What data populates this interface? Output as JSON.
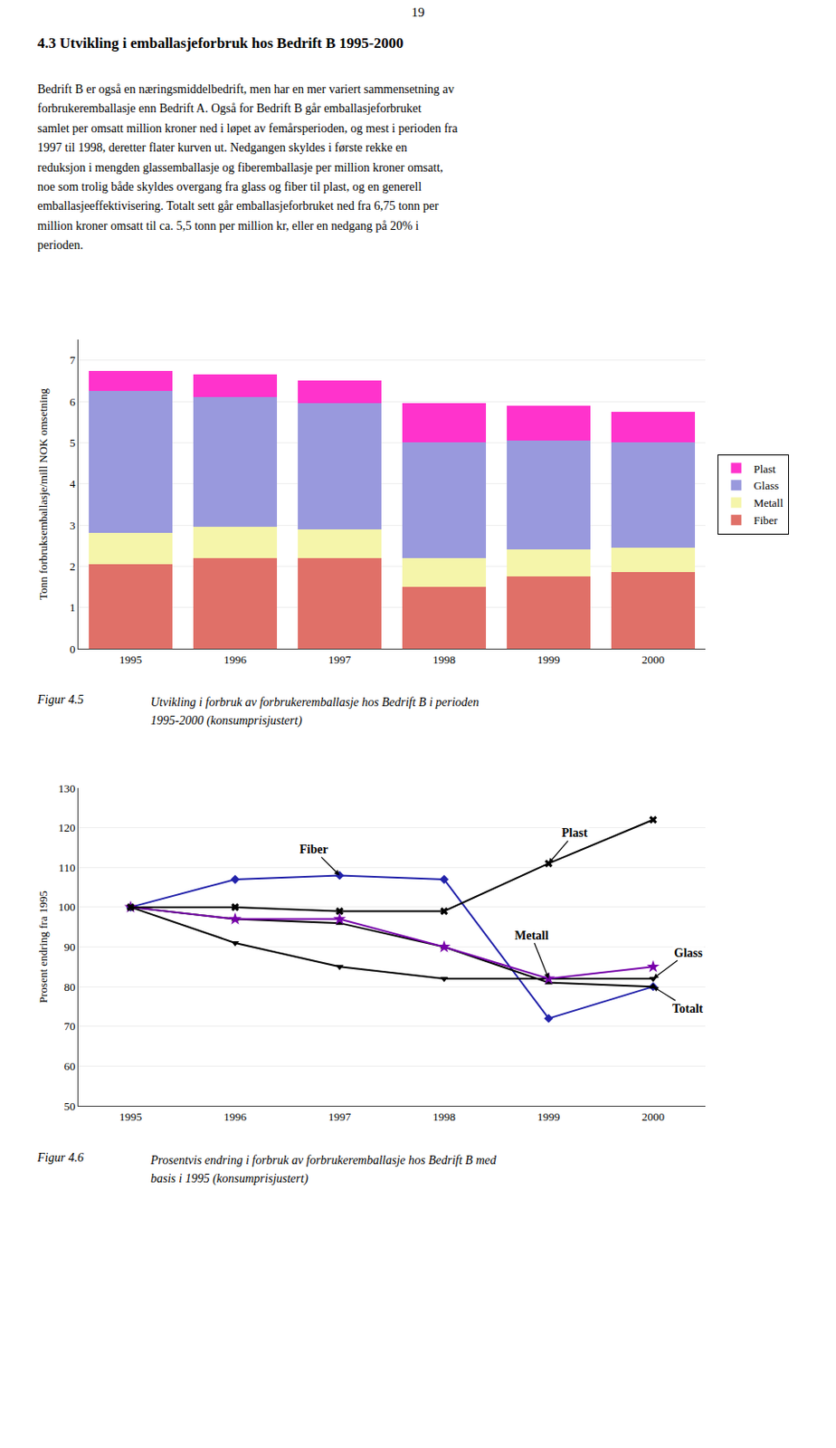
{
  "page_number": "19",
  "title": "4.3   Utvikling i emballasjeforbruk hos Bedrift B 1995-2000",
  "body_text": "Bedrift B er også en næringsmiddelbedrift, men har en mer variert sammensetning av\nforbrukeremballasje enn Bedrift A.  Også for Bedrift B går emballasjeforbruket\nsamlet per omsatt million kroner ned i løpet av femårsperioden, og mest i perioden fra\n1997 til 1998, deretter flater kurven ut.  Nedgangen skyldes i første rekke en\nreduksjon i mengden glassemballasje og fiberemballasje per million kroner omsatt,\nnoe som trolig både skyldes overgang fra glass og fiber til plast, og en generell\nemballasjeeffektivisering. Totalt sett går emballasjeforbruket ned fra 6,75 tonn per\nmillion kroner omsatt til ca. 5,5 tonn per million kr, eller en nedgang på 20% i\nperioden.",
  "chart_data": [
    {
      "type": "bar",
      "title": "Figur 4.5",
      "subtitle": "Utvikling i forbruk av forbrukeremballasje hos Bedrift B i perioden\n1995-2000 (konsumprisjustert)",
      "stacked": true,
      "categories": [
        "1995",
        "1996",
        "1997",
        "1998",
        "1999",
        "2000"
      ],
      "series": [
        {
          "name": "Fiber",
          "color": "#E07068",
          "values": [
            2.05,
            2.2,
            2.2,
            1.5,
            1.75,
            1.85
          ]
        },
        {
          "name": "Metall",
          "color": "#F5F5AA",
          "values": [
            0.75,
            0.75,
            0.7,
            0.7,
            0.65,
            0.6
          ]
        },
        {
          "name": "Glass",
          "color": "#9999DD",
          "values": [
            3.45,
            3.15,
            3.05,
            2.8,
            2.65,
            2.55
          ]
        },
        {
          "name": "Plast",
          "color": "#FF33CC",
          "values": [
            0.5,
            0.55,
            0.55,
            0.95,
            0.85,
            0.75
          ]
        }
      ],
      "ylabel": "Tonn forbruksemballasje/mill NOK omsetning",
      "ylim": [
        0,
        7.5
      ],
      "yticks": [
        0,
        1,
        2,
        3,
        4,
        5,
        6,
        7
      ],
      "grid": true,
      "legend": "right"
    },
    {
      "type": "line",
      "title": "Figur 4.6",
      "subtitle": "Prosentvis endring i forbruk av forbrukeremballasje hos Bedrift B med\nbasis i 1995 (konsumprisjustert)",
      "x": [
        1995,
        1996,
        1997,
        1998,
        1999,
        2000
      ],
      "series": [
        {
          "name": "Fiber",
          "color": "#2222AA",
          "marker": "diamond",
          "values": [
            100,
            107,
            108,
            107,
            72,
            80
          ]
        },
        {
          "name": "Glass",
          "color": "#000000",
          "marker": "triangle-down",
          "values": [
            100,
            91,
            85,
            82,
            82,
            82
          ]
        },
        {
          "name": "Totalt",
          "color": "#000000",
          "marker": "triangle-up",
          "values": [
            100,
            97,
            96,
            90,
            81,
            80
          ]
        },
        {
          "name": "Metall",
          "color": "#7700AA",
          "marker": "star",
          "values": [
            100,
            97,
            97,
            90,
            82,
            85
          ]
        },
        {
          "name": "Plast",
          "color": "#000000",
          "marker": "x",
          "values": [
            100,
            100,
            99,
            99,
            111,
            122
          ]
        }
      ],
      "annotations": [
        {
          "text": "Plast",
          "x": 1999,
          "y": 111
        },
        {
          "text": "Fiber",
          "x": 1997,
          "y": 108
        },
        {
          "text": "Metall",
          "x": 1999,
          "y": 82
        },
        {
          "text": "Glass",
          "x": 2000,
          "y": 82
        },
        {
          "text": "Totalt",
          "x": 2000,
          "y": 80
        }
      ],
      "ylabel": "Prosent endring fra 1995",
      "xlim": [
        1994.5,
        2000.5
      ],
      "xticks": [
        1995,
        1996,
        1997,
        1998,
        1999,
        2000
      ],
      "ylim": [
        50,
        130
      ],
      "yticks": [
        50,
        60,
        70,
        80,
        90,
        100,
        110,
        120,
        130
      ],
      "grid": true
    }
  ]
}
